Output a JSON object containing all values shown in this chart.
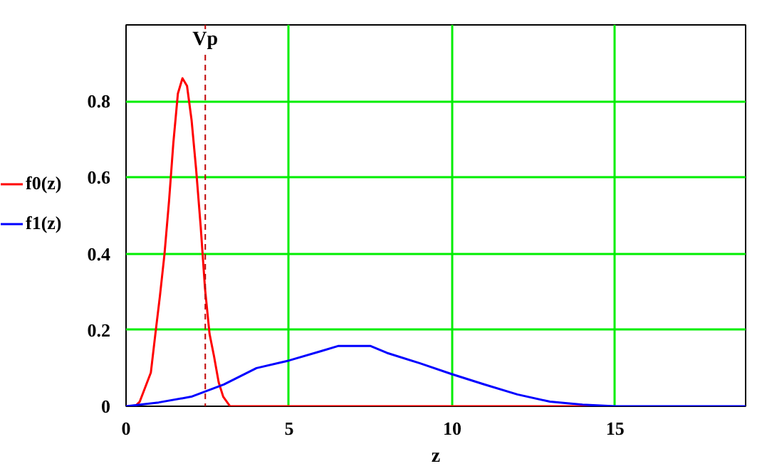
{
  "chart_data": {
    "type": "line",
    "xlabel": "z",
    "xlim": [
      0,
      19
    ],
    "ylim": [
      0,
      1
    ],
    "xticks": [
      0,
      5,
      10,
      15
    ],
    "yticks": [
      0,
      0.2,
      0.4,
      0.6,
      0.8
    ],
    "grid": true,
    "legend": "left",
    "line_style": "solid",
    "series": [
      {
        "name": "f0(z)",
        "color": "#ff0000",
        "x": [
          0,
          0.28,
          0.42,
          0.76,
          0.9,
          1.04,
          1.18,
          1.32,
          1.45,
          1.59,
          1.73,
          1.87,
          2.01,
          2.15,
          2.29,
          2.42,
          2.56,
          2.7,
          2.84,
          2.98,
          3.19,
          5,
          10,
          14.5
        ],
        "values": [
          0,
          0,
          0.012,
          0.088,
          0.19,
          0.29,
          0.4,
          0.54,
          0.69,
          0.82,
          0.86,
          0.84,
          0.75,
          0.62,
          0.47,
          0.31,
          0.19,
          0.13,
          0.063,
          0.025,
          0,
          0,
          0,
          0
        ]
      },
      {
        "name": "f1(z)",
        "color": "#0000ff",
        "x": [
          0,
          1,
          2,
          3,
          4,
          5,
          6,
          6.5,
          7,
          7.5,
          8,
          9,
          10,
          11,
          12,
          13,
          14,
          15,
          19
        ],
        "values": [
          0,
          0.01,
          0.025,
          0.057,
          0.1,
          0.12,
          0.145,
          0.158,
          0.158,
          0.158,
          0.14,
          0.113,
          0.084,
          0.057,
          0.031,
          0.012,
          0.004,
          0,
          0
        ]
      }
    ],
    "ref_lines": [
      {
        "axis": "x",
        "value": 2.43,
        "label": "Vp",
        "color": "#c00000",
        "line_style": "dashed"
      }
    ]
  }
}
